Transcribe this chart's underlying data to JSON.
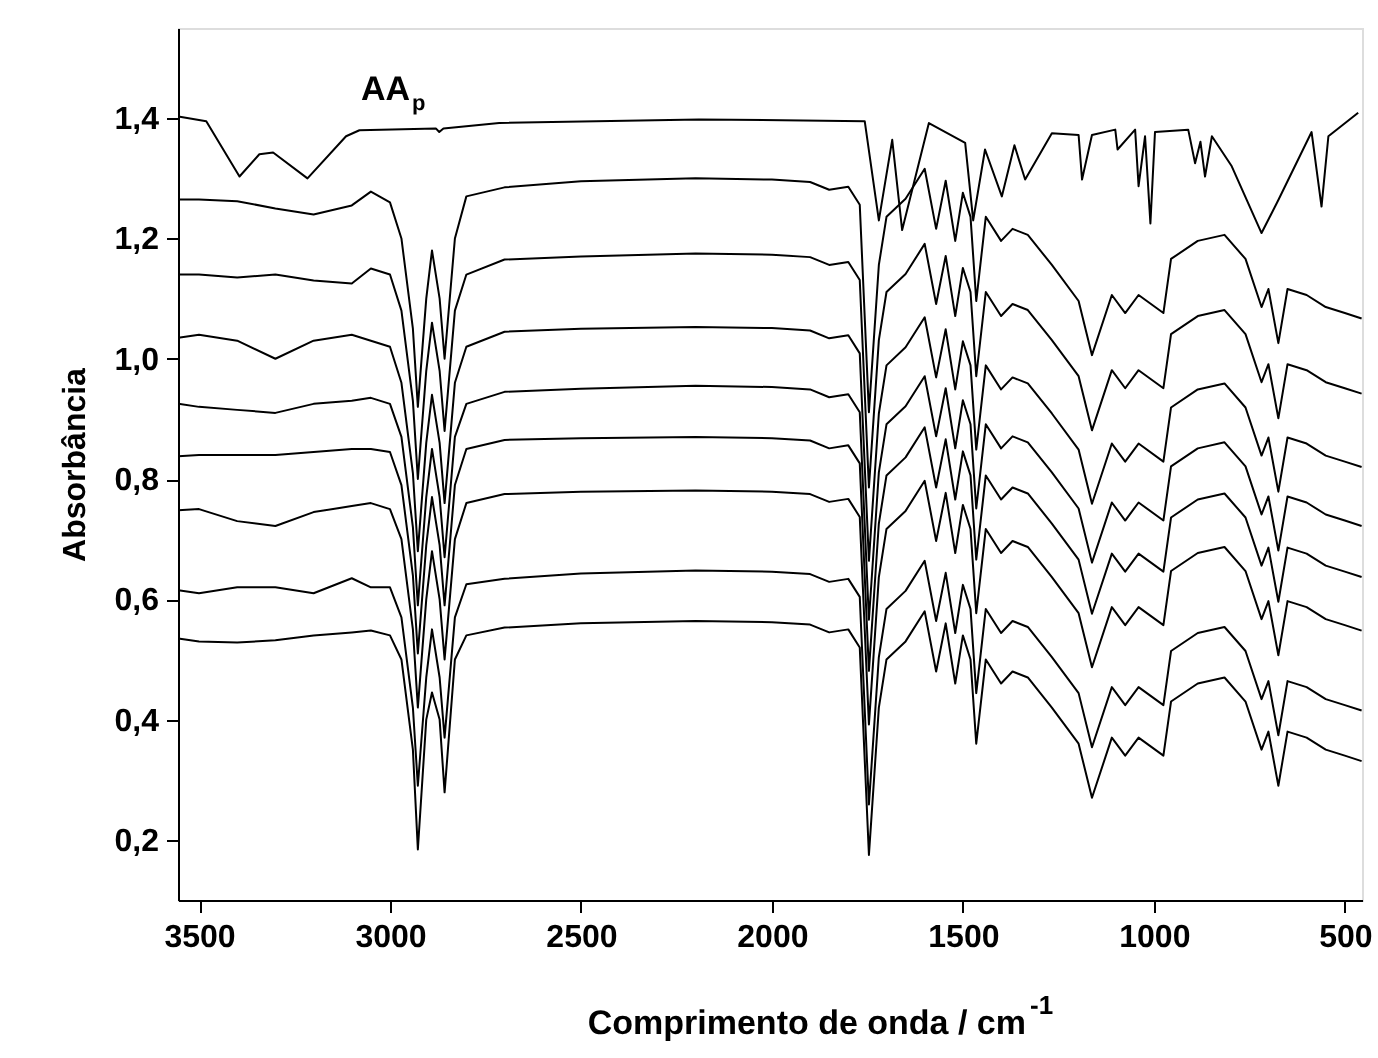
{
  "chart_data": {
    "type": "line",
    "xlabel": "Comprimento de onda / cm$^{-1}$",
    "ylabel": "Absorbância",
    "annotations": [
      "AA$_{p}$"
    ],
    "xlim": [
      3555,
      455
    ],
    "xticks": [
      3500,
      3000,
      2500,
      2000,
      1500,
      1000,
      500
    ],
    "ylim": [
      0.1,
      1.55
    ],
    "yticks": [
      {
        "value": 0.2,
        "label": "0,2"
      },
      {
        "value": 0.4,
        "label": "0,4"
      },
      {
        "value": 0.6,
        "label": "0,6"
      },
      {
        "value": 0.8,
        "label": "0,8"
      },
      {
        "value": 1.0,
        "label": "1,0"
      },
      {
        "value": 1.2,
        "label": "1,2"
      },
      {
        "value": 1.4,
        "label": "1,4"
      }
    ],
    "grid": false,
    "marker": "none",
    "line_style": "solid",
    "x": [
      3554,
      3500,
      3400,
      3300,
      3200,
      3100,
      3050,
      3000,
      2970,
      2940,
      2927,
      2905,
      2890,
      2870,
      2857,
      2830,
      2800,
      2700,
      2500,
      2200,
      2000,
      1900,
      1850,
      1800,
      1770,
      1746,
      1720,
      1700,
      1650,
      1600,
      1570,
      1545,
      1520,
      1500,
      1480,
      1465,
      1440,
      1400,
      1370,
      1330,
      1267,
      1197,
      1162,
      1110,
      1075,
      1040,
      975,
      955,
      885,
      815,
      760,
      718,
      700,
      674,
      650,
      600,
      550,
      500,
      456
    ],
    "series": [
      {
        "color": "#000000",
        "x": [
          3554,
          3481,
          3394,
          3342,
          3306,
          3216,
          3115,
          3080,
          2880,
          2871,
          2860,
          2714,
          2191,
          1757,
          1720,
          1685,
          1659,
          1589,
          1494,
          1473,
          1442,
          1398,
          1365,
          1337,
          1267,
          1197,
          1188,
          1162,
          1101,
          1095,
          1049,
          1040,
          1023,
          1009,
          997,
          910,
          892,
          878,
          866,
          848,
          796,
          718,
          674,
          587,
          561,
          543,
          465
        ],
        "values": [
          1.403,
          1.395,
          1.303,
          1.34,
          1.343,
          1.3,
          1.37,
          1.38,
          1.383,
          1.377,
          1.383,
          1.392,
          1.398,
          1.395,
          1.23,
          1.364,
          1.214,
          1.392,
          1.359,
          1.23,
          1.348,
          1.27,
          1.355,
          1.298,
          1.375,
          1.372,
          1.298,
          1.372,
          1.381,
          1.348,
          1.381,
          1.287,
          1.37,
          1.225,
          1.377,
          1.381,
          1.325,
          1.361,
          1.303,
          1.37,
          1.32,
          1.209,
          1.264,
          1.377,
          1.253,
          1.37,
          1.409
        ]
      },
      {
        "color": "#000000",
        "values": [
          1.265,
          1.265,
          1.262,
          1.25,
          1.24,
          1.255,
          1.278,
          1.26,
          1.2,
          1.05,
          0.92,
          1.1,
          1.18,
          1.1,
          1.0,
          1.2,
          1.27,
          1.285,
          1.295,
          1.3,
          1.298,
          1.294,
          1.281,
          1.286,
          1.256,
          0.911,
          1.156,
          1.236,
          1.266,
          1.316,
          1.216,
          1.296,
          1.196,
          1.276,
          1.236,
          1.096,
          1.236,
          1.196,
          1.216,
          1.206,
          1.156,
          1.096,
          1.006,
          1.106,
          1.076,
          1.106,
          1.076,
          1.166,
          1.196,
          1.206,
          1.166,
          1.086,
          1.116,
          1.026,
          1.116,
          1.106,
          1.086,
          1.076,
          1.067
        ]
      },
      {
        "color": "#000000",
        "values": [
          1.14,
          1.14,
          1.135,
          1.14,
          1.13,
          1.125,
          1.15,
          1.14,
          1.08,
          0.93,
          0.8,
          0.98,
          1.06,
          0.98,
          0.88,
          1.08,
          1.14,
          1.165,
          1.17,
          1.175,
          1.173,
          1.169,
          1.156,
          1.161,
          1.131,
          0.786,
          1.031,
          1.111,
          1.141,
          1.191,
          1.091,
          1.171,
          1.071,
          1.151,
          1.111,
          0.971,
          1.111,
          1.071,
          1.091,
          1.081,
          1.031,
          0.971,
          0.881,
          0.981,
          0.951,
          0.981,
          0.951,
          1.041,
          1.071,
          1.081,
          1.041,
          0.961,
          0.991,
          0.901,
          0.991,
          0.981,
          0.961,
          0.951,
          0.942
        ]
      },
      {
        "color": "#000000",
        "values": [
          1.035,
          1.04,
          1.03,
          1.0,
          1.03,
          1.04,
          1.03,
          1.02,
          0.96,
          0.81,
          0.68,
          0.86,
          0.94,
          0.86,
          0.76,
          0.96,
          1.02,
          1.045,
          1.05,
          1.053,
          1.051,
          1.047,
          1.034,
          1.039,
          1.009,
          0.664,
          0.909,
          0.989,
          1.019,
          1.069,
          0.969,
          1.049,
          0.949,
          1.029,
          0.989,
          0.849,
          0.989,
          0.949,
          0.969,
          0.959,
          0.909,
          0.849,
          0.759,
          0.859,
          0.829,
          0.859,
          0.829,
          0.919,
          0.949,
          0.959,
          0.919,
          0.839,
          0.869,
          0.779,
          0.869,
          0.859,
          0.839,
          0.829,
          0.82
        ]
      },
      {
        "color": "#000000",
        "values": [
          0.925,
          0.92,
          0.915,
          0.91,
          0.925,
          0.93,
          0.935,
          0.925,
          0.87,
          0.72,
          0.59,
          0.77,
          0.85,
          0.77,
          0.67,
          0.87,
          0.925,
          0.945,
          0.95,
          0.955,
          0.953,
          0.949,
          0.936,
          0.941,
          0.911,
          0.566,
          0.811,
          0.891,
          0.921,
          0.971,
          0.871,
          0.951,
          0.851,
          0.931,
          0.891,
          0.751,
          0.891,
          0.851,
          0.871,
          0.861,
          0.811,
          0.751,
          0.661,
          0.761,
          0.731,
          0.761,
          0.731,
          0.821,
          0.851,
          0.861,
          0.821,
          0.741,
          0.771,
          0.681,
          0.771,
          0.761,
          0.741,
          0.731,
          0.722
        ]
      },
      {
        "color": "#000000",
        "values": [
          0.838,
          0.84,
          0.84,
          0.84,
          0.845,
          0.85,
          0.85,
          0.845,
          0.79,
          0.64,
          0.51,
          0.69,
          0.77,
          0.69,
          0.59,
          0.79,
          0.85,
          0.865,
          0.868,
          0.87,
          0.868,
          0.864,
          0.851,
          0.856,
          0.826,
          0.481,
          0.726,
          0.806,
          0.836,
          0.886,
          0.786,
          0.866,
          0.766,
          0.846,
          0.806,
          0.666,
          0.806,
          0.766,
          0.786,
          0.776,
          0.726,
          0.666,
          0.576,
          0.676,
          0.646,
          0.676,
          0.646,
          0.736,
          0.766,
          0.776,
          0.736,
          0.656,
          0.686,
          0.596,
          0.686,
          0.676,
          0.656,
          0.646,
          0.637
        ]
      },
      {
        "color": "#000000",
        "values": [
          0.748,
          0.75,
          0.73,
          0.722,
          0.745,
          0.755,
          0.76,
          0.75,
          0.7,
          0.55,
          0.42,
          0.6,
          0.68,
          0.6,
          0.5,
          0.7,
          0.76,
          0.775,
          0.779,
          0.781,
          0.779,
          0.775,
          0.762,
          0.767,
          0.737,
          0.392,
          0.637,
          0.717,
          0.747,
          0.797,
          0.697,
          0.777,
          0.677,
          0.757,
          0.717,
          0.577,
          0.717,
          0.677,
          0.697,
          0.687,
          0.637,
          0.577,
          0.487,
          0.587,
          0.557,
          0.587,
          0.557,
          0.647,
          0.677,
          0.687,
          0.647,
          0.567,
          0.597,
          0.507,
          0.597,
          0.587,
          0.567,
          0.557,
          0.548
        ]
      },
      {
        "color": "#000000",
        "values": [
          0.615,
          0.61,
          0.62,
          0.62,
          0.61,
          0.635,
          0.62,
          0.62,
          0.57,
          0.42,
          0.29,
          0.47,
          0.55,
          0.47,
          0.37,
          0.57,
          0.625,
          0.634,
          0.643,
          0.648,
          0.646,
          0.642,
          0.629,
          0.634,
          0.604,
          0.259,
          0.504,
          0.584,
          0.614,
          0.664,
          0.564,
          0.644,
          0.544,
          0.624,
          0.584,
          0.444,
          0.584,
          0.544,
          0.564,
          0.554,
          0.504,
          0.444,
          0.354,
          0.454,
          0.424,
          0.454,
          0.424,
          0.514,
          0.544,
          0.554,
          0.514,
          0.434,
          0.464,
          0.374,
          0.464,
          0.454,
          0.434,
          0.424,
          0.415
        ]
      },
      {
        "color": "#000000",
        "values": [
          0.535,
          0.53,
          0.528,
          0.532,
          0.54,
          0.545,
          0.548,
          0.54,
          0.5,
          0.35,
          0.184,
          0.4,
          0.445,
          0.4,
          0.279,
          0.5,
          0.54,
          0.553,
          0.56,
          0.564,
          0.562,
          0.558,
          0.545,
          0.55,
          0.52,
          0.175,
          0.42,
          0.5,
          0.53,
          0.58,
          0.48,
          0.56,
          0.46,
          0.54,
          0.5,
          0.36,
          0.5,
          0.46,
          0.48,
          0.47,
          0.42,
          0.36,
          0.27,
          0.37,
          0.34,
          0.37,
          0.34,
          0.43,
          0.46,
          0.47,
          0.43,
          0.35,
          0.38,
          0.29,
          0.38,
          0.37,
          0.35,
          0.34,
          0.331
        ]
      }
    ]
  }
}
